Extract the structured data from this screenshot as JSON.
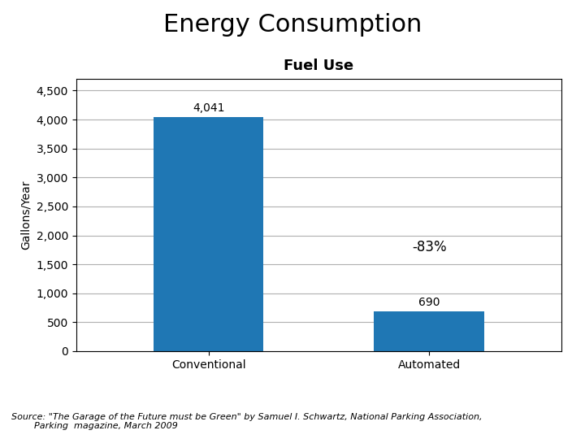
{
  "chart_data": {
    "type": "bar",
    "title": "Energy Consumption",
    "subtitle": "Fuel Use",
    "categories": [
      "Conventional",
      "Automated"
    ],
    "values": [
      4041,
      690
    ],
    "value_labels": [
      "4,041",
      "690"
    ],
    "data_labels": true,
    "ylabel": "Gallons/Year",
    "ylim": [
      0,
      4700
    ],
    "yticks": [
      0,
      500,
      {
        "value": 1000,
        "label": "1,000"
      },
      {
        "value": 1500,
        "label": "1,500"
      },
      {
        "value": 2000,
        "label": "2,000"
      },
      {
        "value": 2500,
        "label": "2,500"
      },
      {
        "value": 3000,
        "label": "3,000"
      },
      {
        "value": 3500,
        "label": "3,500"
      },
      {
        "value": 4000,
        "label": "4,000"
      },
      {
        "value": 4500,
        "label": "4,500"
      }
    ],
    "grid": "y",
    "annotations": [
      {
        "text": "-83%",
        "x": "Automated",
        "y": 1800
      }
    ],
    "source": "Source: \"The Garage of the Future must be Green\" by Samuel I. Schwartz, National Parking Association,\n        Parking  magazine, March 2009"
  }
}
